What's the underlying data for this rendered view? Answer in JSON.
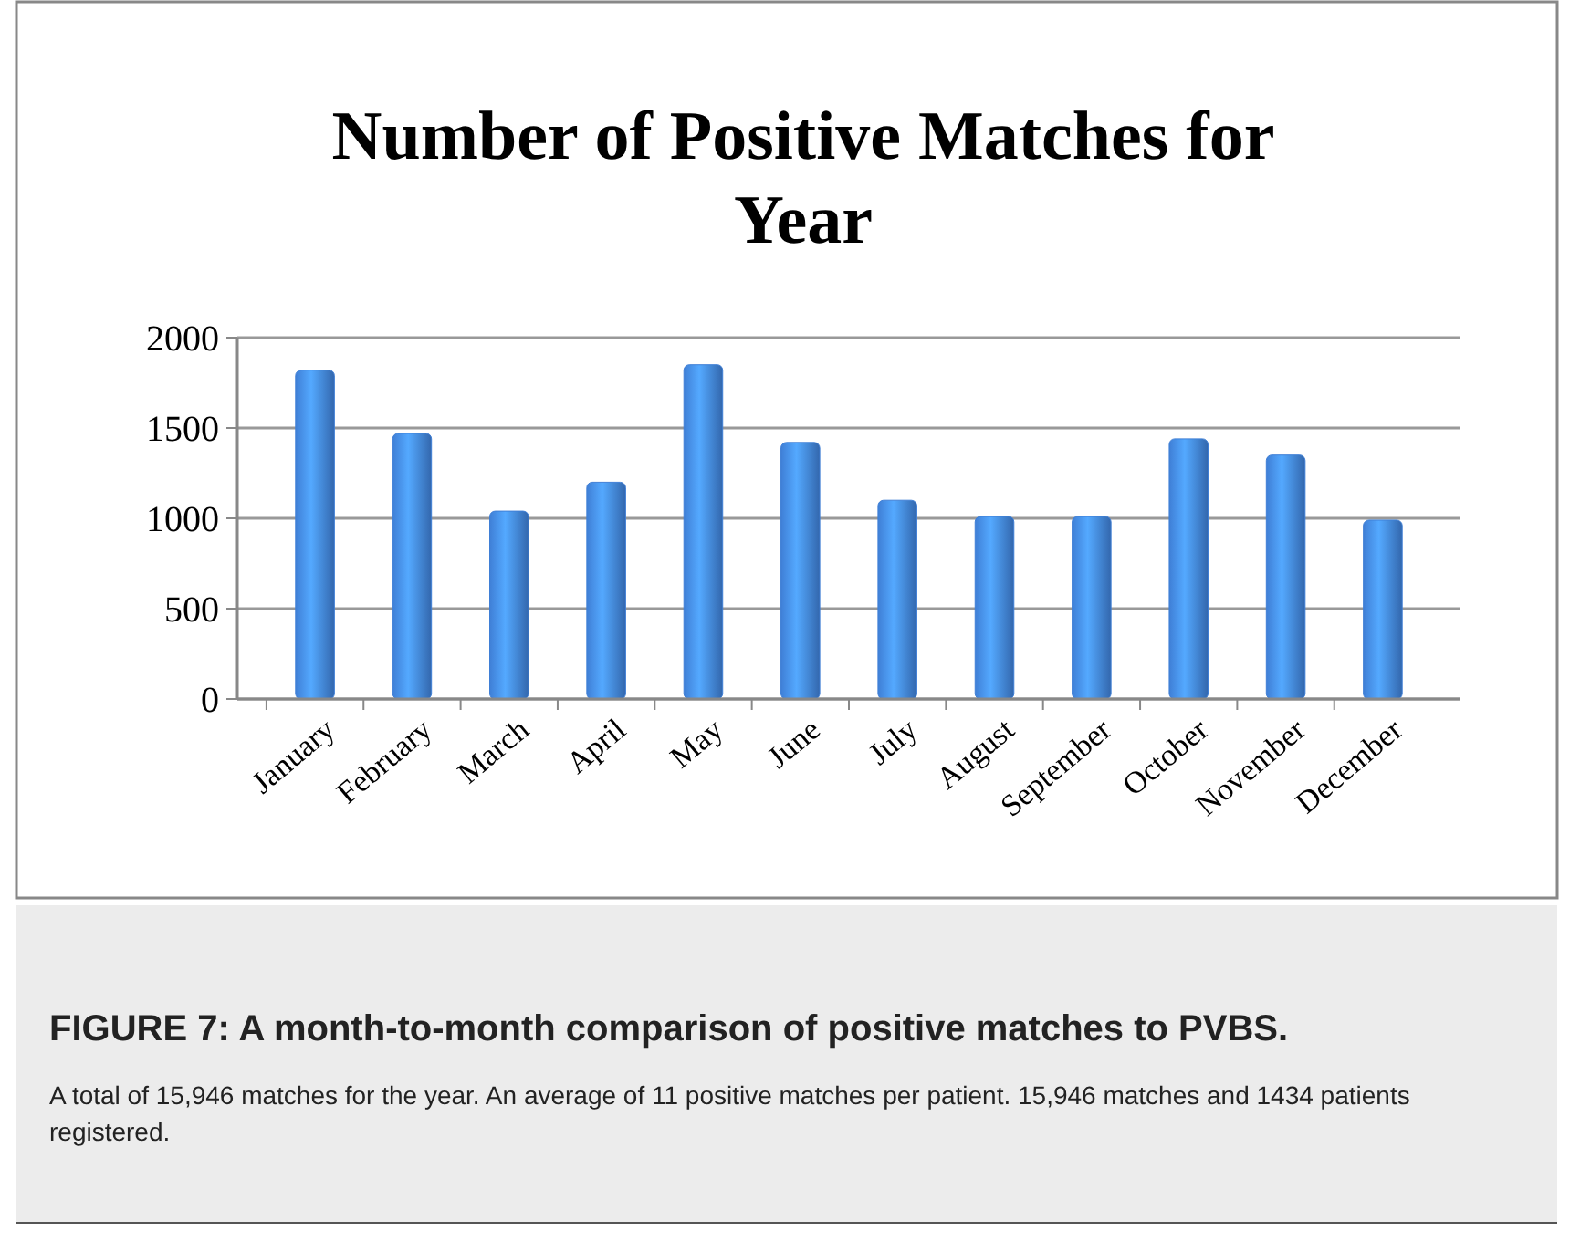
{
  "chart_data": {
    "type": "bar",
    "title": "Number of Positive Matches for Year",
    "categories": [
      "January",
      "February",
      "March",
      "April",
      "May",
      "June",
      "July",
      "August",
      "September",
      "October",
      "November",
      "December"
    ],
    "values": [
      1820,
      1470,
      1040,
      1200,
      1850,
      1420,
      1100,
      1010,
      1010,
      1440,
      1350,
      990
    ],
    "color": "#3f7fd6",
    "ylim": [
      0,
      2000
    ],
    "yticks": [
      0,
      500,
      1000,
      1500,
      2000
    ],
    "grid": "y",
    "annotations": [
      "FIGURE 7: A month-to-month comparison of positive matches to PVBS.",
      "A total of 15,946 matches for the year. An average of 11 positive matches per patient. 15,946 matches and 1434 patients registered."
    ]
  }
}
